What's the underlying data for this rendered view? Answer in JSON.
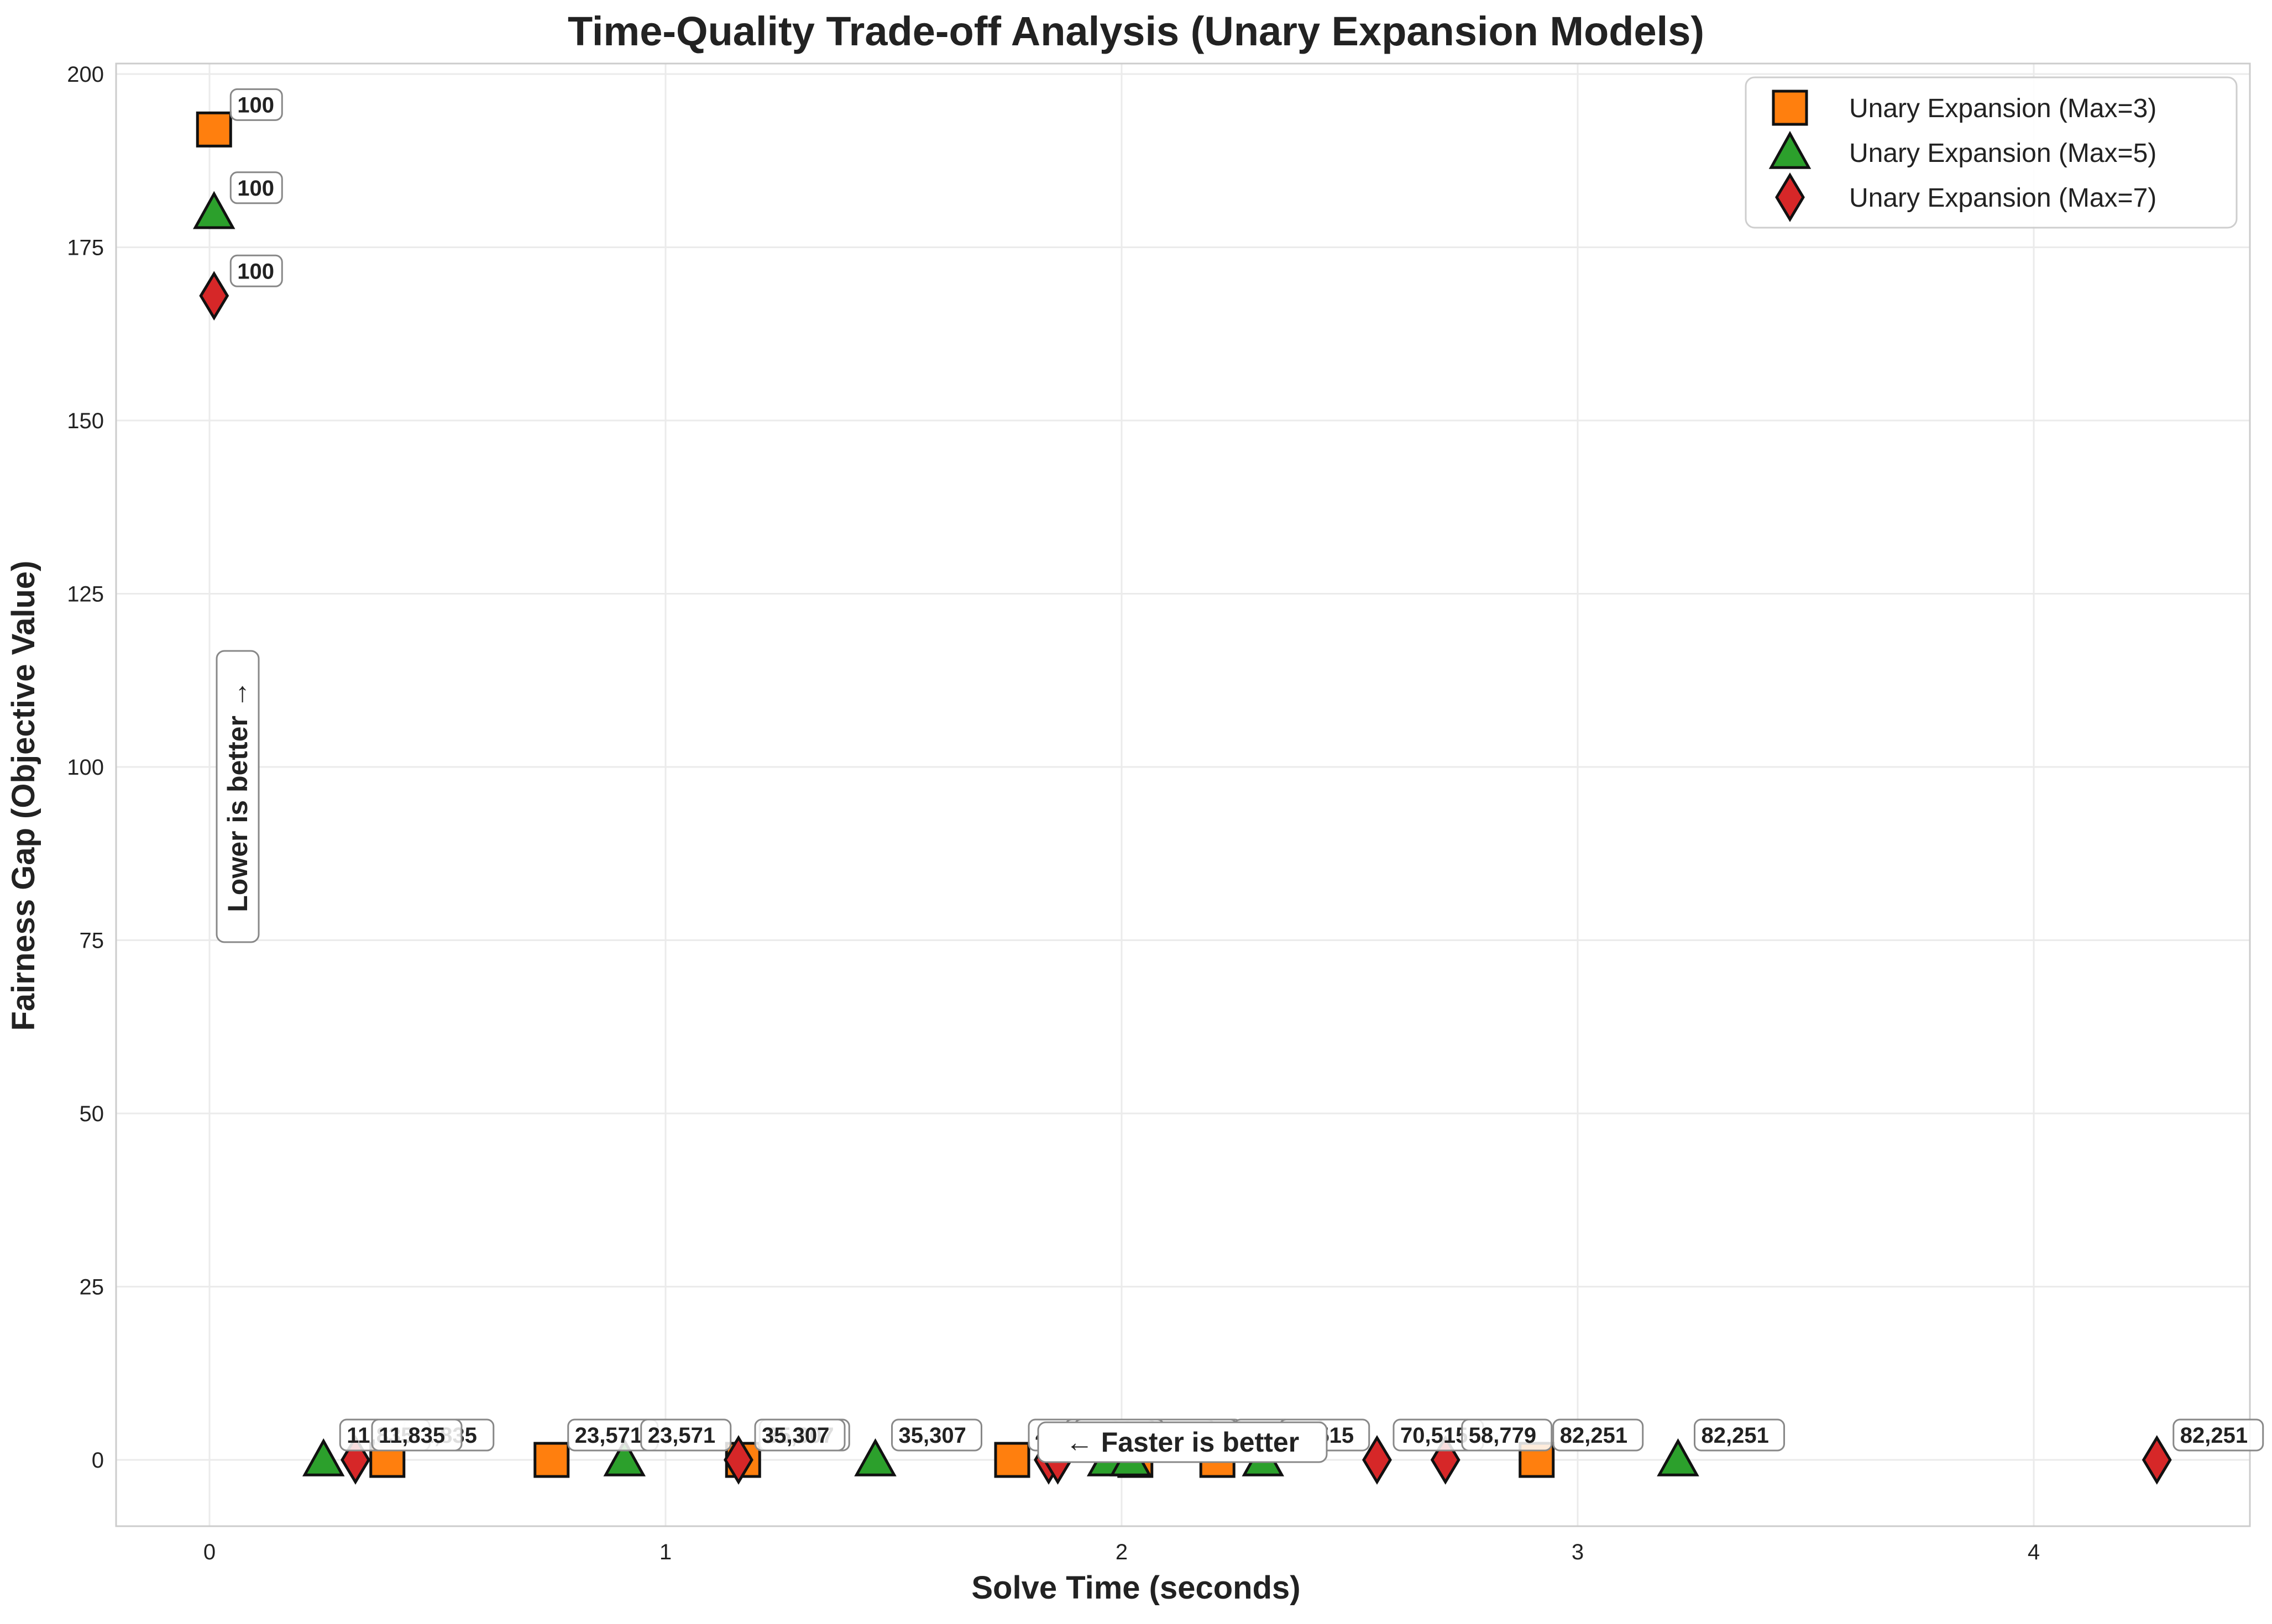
{
  "chart_data": {
    "type": "scatter",
    "title": "Time-Quality Trade-off Analysis (Unary Expansion Models)",
    "xlabel": "Solve Time (seconds)",
    "ylabel": "Fairness Gap (Objective Value)",
    "xlim": [
      -0.2,
      4.5
    ],
    "ylim": [
      -10,
      202
    ],
    "xticks": [
      0,
      1,
      2,
      3,
      4
    ],
    "yticks": [
      0,
      25,
      50,
      75,
      100,
      125,
      150,
      175,
      200
    ],
    "grid": true,
    "legend_position": "top-right",
    "annotations": {
      "y_note": "Lower is better →",
      "x_note": "← Faster is better"
    },
    "series": [
      {
        "name": "Unary Expansion (Max=3)",
        "marker": "square",
        "color": "#ff7f0e",
        "points": [
          {
            "x": 0.01,
            "y": 192,
            "label": "100"
          },
          {
            "x": 0.39,
            "y": 0,
            "label": "11,835"
          },
          {
            "x": 0.75,
            "y": 0,
            "label": "23,571"
          },
          {
            "x": 1.17,
            "y": 0,
            "label": "35,307"
          },
          {
            "x": 1.76,
            "y": 0,
            "label": "47,043"
          },
          {
            "x": 2.03,
            "y": 0,
            "label": "58,779"
          },
          {
            "x": 2.21,
            "y": 0,
            "label": "70,515"
          },
          {
            "x": 2.91,
            "y": 0,
            "label": "82,251"
          }
        ]
      },
      {
        "name": "Unary Expansion (Max=5)",
        "marker": "triangle",
        "color": "#2ca02c",
        "points": [
          {
            "x": 0.01,
            "y": 180,
            "label": "100"
          },
          {
            "x": 0.25,
            "y": 0,
            "label": "11,835"
          },
          {
            "x": 0.91,
            "y": 0,
            "label": "23,571"
          },
          {
            "x": 1.46,
            "y": 0,
            "label": "35,307"
          },
          {
            "x": 1.97,
            "y": 0,
            "label": "47,043"
          },
          {
            "x": 2.02,
            "y": 0,
            "label": "58,779"
          },
          {
            "x": 2.31,
            "y": 0,
            "label": "70,515"
          },
          {
            "x": 3.22,
            "y": 0,
            "label": "82,251"
          }
        ]
      },
      {
        "name": "Unary Expansion (Max=7)",
        "marker": "diamond",
        "color": "#d62728",
        "points": [
          {
            "x": 0.01,
            "y": 168,
            "label": "100"
          },
          {
            "x": 0.32,
            "y": 0,
            "label": "11,835"
          },
          {
            "x": 1.16,
            "y": 0,
            "label": "35,307"
          },
          {
            "x": 1.84,
            "y": 0,
            "label": "47,043"
          },
          {
            "x": 1.86,
            "y": 0,
            "label": "47,043"
          },
          {
            "x": 2.56,
            "y": 0,
            "label": "70,515"
          },
          {
            "x": 2.71,
            "y": 0,
            "label": "58,779"
          },
          {
            "x": 4.27,
            "y": 0,
            "label": "82,251"
          }
        ]
      }
    ]
  }
}
